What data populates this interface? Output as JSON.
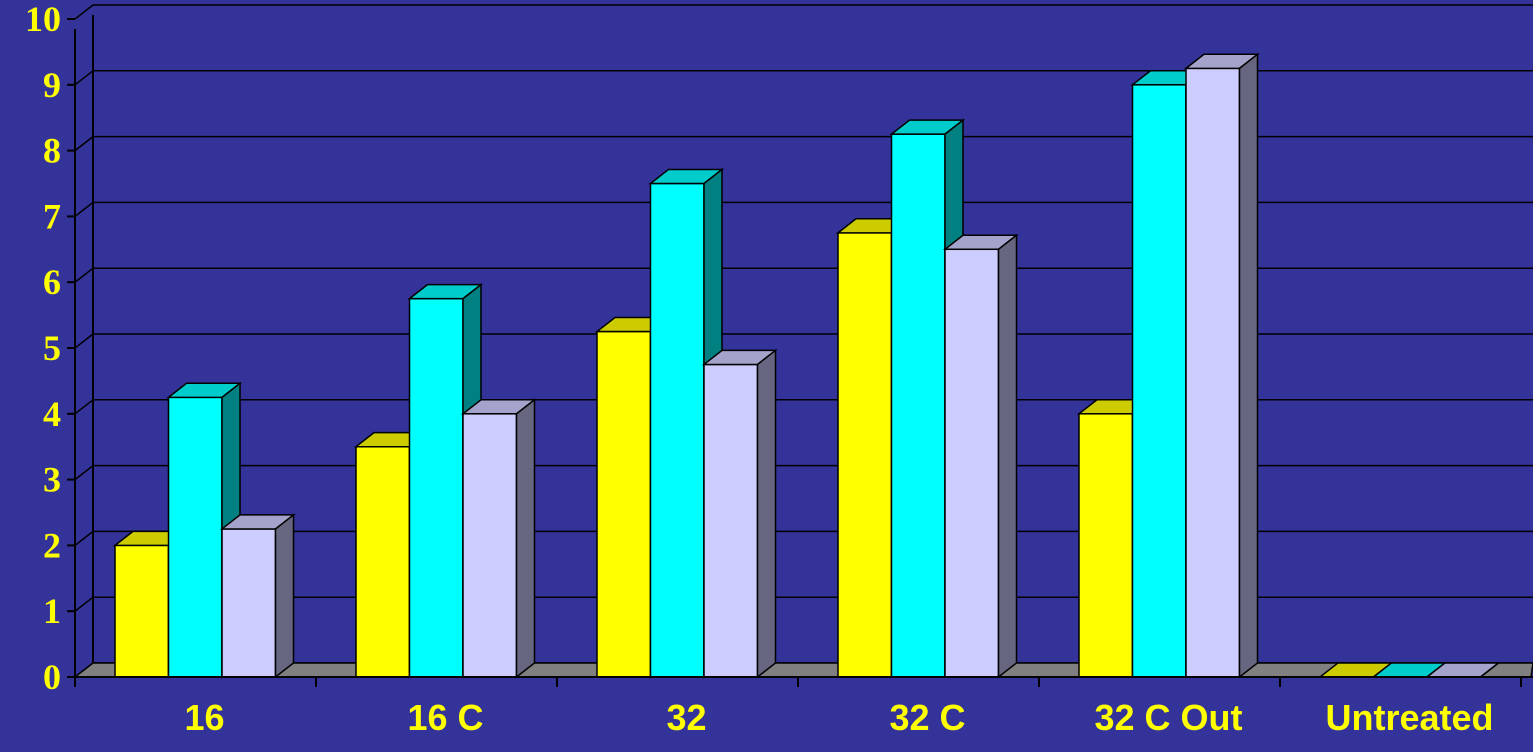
{
  "chart_data": {
    "type": "bar",
    "title": "",
    "xlabel": "",
    "ylabel": "",
    "ylim": [
      0,
      10
    ],
    "yticks": [
      "0",
      "1",
      "2",
      "3",
      "4",
      "5",
      "6",
      "7",
      "8",
      "9",
      "10"
    ],
    "categories": [
      "16",
      "16 C",
      "32",
      "32 C",
      "32 C Out",
      "Untreated"
    ],
    "series": [
      {
        "values": [
          2.0,
          3.5,
          5.25,
          6.75,
          4.0,
          0
        ],
        "color": "#FFFF00"
      },
      {
        "values": [
          4.25,
          5.75,
          7.5,
          8.25,
          9.0,
          0
        ],
        "color": "#00FFFF"
      },
      {
        "values": [
          2.25,
          4.0,
          4.75,
          6.5,
          9.25,
          0
        ],
        "color": "#CCCCFF"
      }
    ],
    "grid": true,
    "legend": "none",
    "background_color": "#333399",
    "text_color": "#FFFF00"
  }
}
